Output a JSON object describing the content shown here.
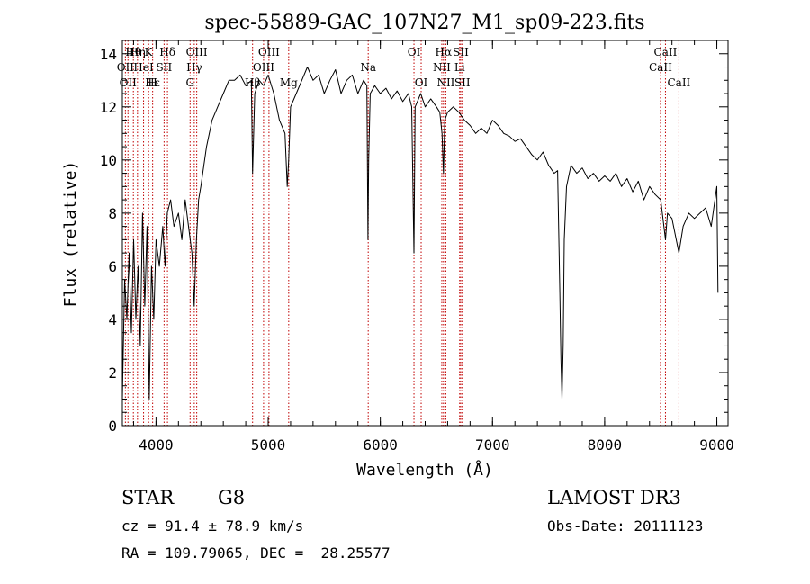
{
  "chart_data": {
    "type": "line",
    "title": "spec-55889-GAC_107N27_M1_sp09-223.fits",
    "xlabel": "Wavelength (Å)",
    "ylabel": "Flux (relative)",
    "xlim": [
      3700,
      9100
    ],
    "ylim": [
      0,
      14.5
    ],
    "xticks": [
      4000,
      5000,
      6000,
      7000,
      8000,
      9000
    ],
    "yticks": [
      0,
      2,
      4,
      6,
      8,
      10,
      12,
      14
    ],
    "series": [
      {
        "name": "spectrum",
        "x": [
          3700,
          3720,
          3740,
          3760,
          3780,
          3800,
          3820,
          3840,
          3860,
          3880,
          3900,
          3920,
          3940,
          3960,
          3980,
          4000,
          4030,
          4060,
          4080,
          4100,
          4130,
          4160,
          4200,
          4230,
          4260,
          4290,
          4320,
          4340,
          4360,
          4380,
          4400,
          4450,
          4500,
          4550,
          4600,
          4650,
          4700,
          4750,
          4800,
          4850,
          4861,
          4880,
          4920,
          4960,
          5000,
          5050,
          5100,
          5150,
          5170,
          5183,
          5200,
          5250,
          5300,
          5350,
          5400,
          5450,
          5500,
          5550,
          5600,
          5650,
          5700,
          5750,
          5800,
          5850,
          5880,
          5890,
          5896,
          5910,
          5950,
          6000,
          6050,
          6100,
          6150,
          6200,
          6250,
          6280,
          6300,
          6310,
          6330,
          6360,
          6400,
          6450,
          6500,
          6530,
          6550,
          6563,
          6575,
          6600,
          6650,
          6700,
          6750,
          6800,
          6850,
          6900,
          6950,
          7000,
          7050,
          7100,
          7150,
          7200,
          7250,
          7300,
          7350,
          7400,
          7450,
          7500,
          7550,
          7580,
          7600,
          7610,
          7620,
          7630,
          7640,
          7660,
          7700,
          7750,
          7800,
          7850,
          7900,
          7950,
          8000,
          8050,
          8100,
          8150,
          8200,
          8250,
          8300,
          8350,
          8400,
          8450,
          8500,
          8542,
          8560,
          8600,
          8662,
          8700,
          8750,
          8800,
          8850,
          8900,
          8950,
          9000,
          9010
        ],
        "values": [
          1.0,
          5.5,
          4.0,
          6.5,
          3.5,
          7.0,
          4.0,
          6.0,
          3.0,
          8.0,
          4.5,
          7.5,
          1.0,
          6.0,
          4.0,
          7.0,
          6.0,
          7.5,
          6.0,
          8.0,
          8.5,
          7.5,
          8.0,
          7.0,
          8.5,
          7.5,
          6.5,
          4.5,
          7.0,
          8.5,
          9.0,
          10.5,
          11.5,
          12.0,
          12.5,
          13.0,
          13.0,
          13.2,
          12.8,
          13.0,
          9.5,
          12.5,
          13.0,
          12.8,
          13.2,
          12.5,
          11.5,
          11.0,
          9.0,
          10.0,
          12.0,
          12.5,
          13.0,
          13.5,
          13.0,
          13.2,
          12.5,
          13.0,
          13.4,
          12.5,
          13.0,
          13.2,
          12.5,
          13.0,
          12.8,
          7.0,
          10.0,
          12.5,
          12.8,
          12.5,
          12.7,
          12.3,
          12.6,
          12.2,
          12.5,
          12.0,
          6.5,
          12.0,
          12.2,
          12.5,
          12.0,
          12.3,
          12.0,
          11.8,
          11.0,
          9.5,
          11.5,
          11.8,
          12.0,
          11.8,
          11.5,
          11.3,
          11.0,
          11.2,
          11.0,
          11.5,
          11.3,
          11.0,
          10.9,
          10.7,
          10.8,
          10.5,
          10.2,
          10.0,
          10.3,
          9.8,
          9.5,
          9.6,
          5.0,
          2.5,
          1.0,
          3.0,
          7.0,
          9.0,
          9.8,
          9.5,
          9.7,
          9.3,
          9.5,
          9.2,
          9.4,
          9.2,
          9.5,
          9.0,
          9.3,
          8.8,
          9.2,
          8.5,
          9.0,
          8.7,
          8.5,
          7.0,
          8.0,
          7.8,
          6.5,
          7.5,
          8.0,
          7.8,
          8.0,
          8.2,
          7.5,
          9.0,
          5.0
        ]
      }
    ],
    "line_markers": [
      {
        "wavelength": 3727,
        "label": "OII",
        "row": 2
      },
      {
        "wavelength": 3750,
        "label": "OII",
        "row": 3
      },
      {
        "wavelength": 3798,
        "label": "Hθ",
        "row": 1
      },
      {
        "wavelength": 3835,
        "label": "Hη",
        "row": 1
      },
      {
        "wavelength": 3889,
        "label": "HeI",
        "row": 2
      },
      {
        "wavelength": 3934,
        "label": "K",
        "row": 1
      },
      {
        "wavelength": 3970,
        "label": "H",
        "row": 3
      },
      {
        "wavelength": 3970,
        "label": "Hε",
        "row": 3
      },
      {
        "wavelength": 4072,
        "label": "SII",
        "row": 2
      },
      {
        "wavelength": 4102,
        "label": "Hδ",
        "row": 1
      },
      {
        "wavelength": 4304,
        "label": "G",
        "row": 3
      },
      {
        "wavelength": 4341,
        "label": "Hγ",
        "row": 2
      },
      {
        "wavelength": 4363,
        "label": "OIII",
        "row": 1
      },
      {
        "wavelength": 4861,
        "label": "Hβ",
        "row": 3
      },
      {
        "wavelength": 4959,
        "label": "OIII",
        "row": 2
      },
      {
        "wavelength": 5007,
        "label": "OIII",
        "row": 1
      },
      {
        "wavelength": 5183,
        "label": "Mg",
        "row": 3
      },
      {
        "wavelength": 5892,
        "label": "Na",
        "row": 2
      },
      {
        "wavelength": 6300,
        "label": "OI",
        "row": 1
      },
      {
        "wavelength": 6364,
        "label": "OI",
        "row": 3
      },
      {
        "wavelength": 6548,
        "label": "NII",
        "row": 2
      },
      {
        "wavelength": 6563,
        "label": "Hα",
        "row": 1
      },
      {
        "wavelength": 6584,
        "label": "NII",
        "row": 3
      },
      {
        "wavelength": 6707,
        "label": "Li",
        "row": 2
      },
      {
        "wavelength": 6717,
        "label": "SII",
        "row": 1
      },
      {
        "wavelength": 6731,
        "label": "SII",
        "row": 3
      },
      {
        "wavelength": 8498,
        "label": "CaII",
        "row": 2
      },
      {
        "wavelength": 8542,
        "label": "CaII",
        "row": 1
      },
      {
        "wavelength": 8662,
        "label": "CaII",
        "row": 3
      }
    ],
    "colors": {
      "spectrum": "#000000",
      "markers": "#c00000",
      "axes": "#000000"
    }
  },
  "info": {
    "object_class": "STAR",
    "subclass": "G8",
    "survey": "LAMOST DR3",
    "cz": "cz = 91.4 ± 78.9 km/s",
    "obs_date": "Obs-Date: 20111123",
    "coords": "RA = 109.79065, DEC =  28.25577"
  }
}
